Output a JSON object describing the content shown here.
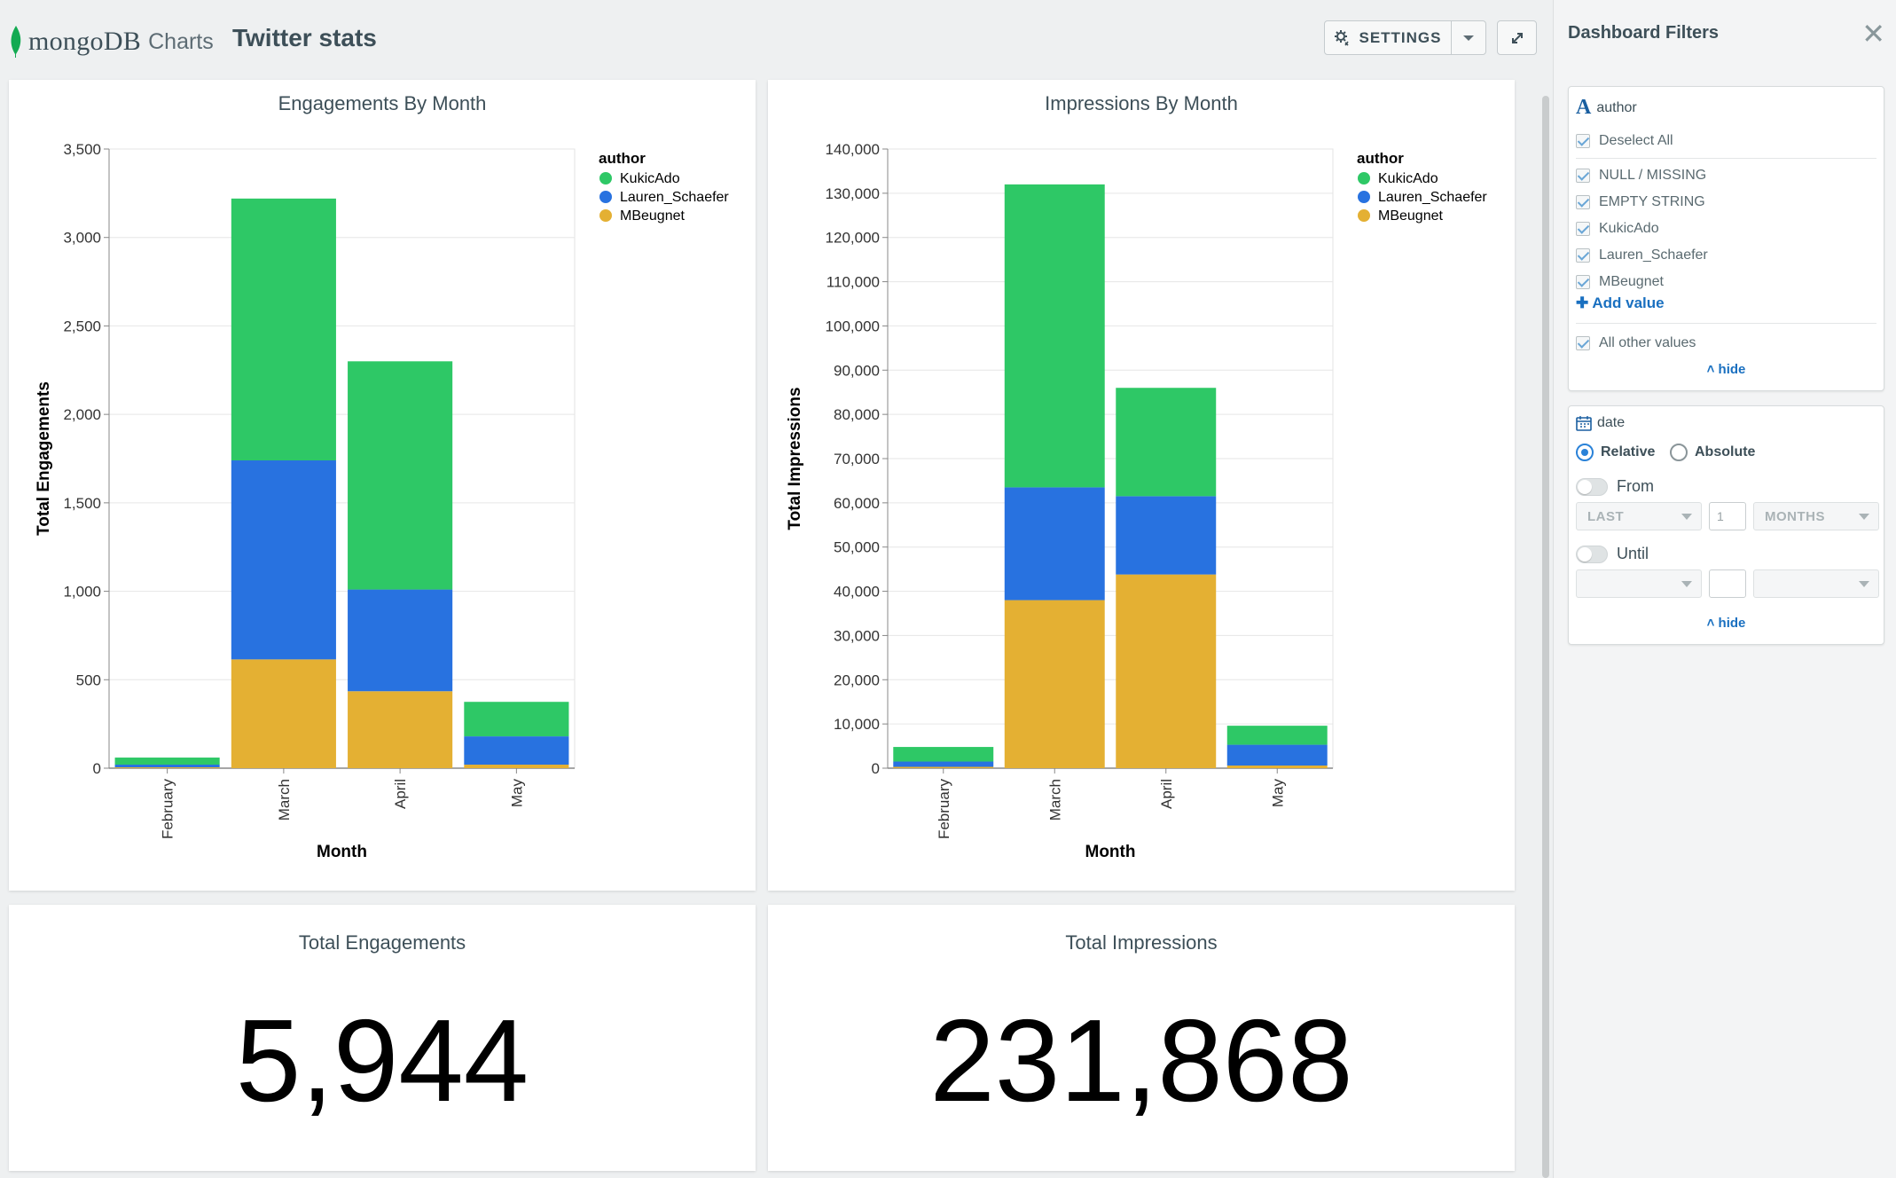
{
  "header": {
    "brand": "mongoDB",
    "product": "Charts",
    "dashboard_title": "Twitter stats",
    "settings_label": "SETTINGS"
  },
  "colors": {
    "KukicAdo": "#2ec866",
    "Lauren_Schaefer": "#2872e0",
    "MBeugnet": "#e4b033",
    "accent": "#1a70c0"
  },
  "icons": [
    "mongodb-leaf-icon",
    "settings-gear-icon",
    "chevron-down-icon",
    "expand-icon",
    "close-icon",
    "text-field-icon",
    "calendar-icon",
    "plus-icon",
    "chevron-up-icon"
  ],
  "charts": {
    "engagements_title": "Engagements By Month",
    "impressions_title": "Impressions By Month",
    "total_engagements_title": "Total Engagements",
    "total_engagements_value": "5,944",
    "total_impressions_title": "Total Impressions",
    "total_impressions_value": "231,868"
  },
  "chart_data": [
    {
      "type": "bar",
      "stacked": true,
      "title": "Engagements By Month",
      "xlabel": "Month",
      "ylabel": "Total Engagements",
      "legend_title": "author",
      "legend_position": "top-right",
      "categories": [
        "February",
        "March",
        "April",
        "May"
      ],
      "ylim": [
        0,
        3500
      ],
      "yticks": [
        0,
        500,
        1000,
        1500,
        2000,
        2500,
        3000,
        3500
      ],
      "ytick_labels": [
        "0",
        "500",
        "1,000",
        "1,500",
        "2,000",
        "2,500",
        "3,000",
        "3,500"
      ],
      "grid": true,
      "series": [
        {
          "name": "MBeugnet",
          "values": [
            5,
            615,
            435,
            20
          ]
        },
        {
          "name": "Lauren_Schaefer",
          "values": [
            15,
            1125,
            575,
            160
          ]
        },
        {
          "name": "KukicAdo",
          "values": [
            40,
            1480,
            1290,
            195
          ]
        }
      ]
    },
    {
      "type": "bar",
      "stacked": true,
      "title": "Impressions By Month",
      "xlabel": "Month",
      "ylabel": "Total Impressions",
      "legend_title": "author",
      "legend_position": "top-right",
      "categories": [
        "February",
        "March",
        "April",
        "May"
      ],
      "ylim": [
        0,
        140000
      ],
      "yticks": [
        0,
        10000,
        20000,
        30000,
        40000,
        50000,
        60000,
        70000,
        80000,
        90000,
        100000,
        110000,
        120000,
        130000,
        140000
      ],
      "ytick_labels": [
        "0",
        "10,000",
        "20,000",
        "30,000",
        "40,000",
        "50,000",
        "60,000",
        "70,000",
        "80,000",
        "90,000",
        "100,000",
        "110,000",
        "120,000",
        "130,000",
        "140,000"
      ],
      "grid": true,
      "series": [
        {
          "name": "MBeugnet",
          "values": [
            300,
            38000,
            43800,
            600
          ]
        },
        {
          "name": "Lauren_Schaefer",
          "values": [
            1200,
            25500,
            17700,
            4700
          ]
        },
        {
          "name": "KukicAdo",
          "values": [
            3300,
            68500,
            24500,
            4300
          ]
        }
      ]
    }
  ],
  "filters": {
    "title": "Dashboard Filters",
    "author": {
      "field": "author",
      "deselect_all": "Deselect All",
      "values": [
        "NULL / MISSING",
        "EMPTY STRING",
        "KukicAdo",
        "Lauren_Schaefer",
        "MBeugnet"
      ],
      "add_value": "Add value",
      "all_other": "All other values",
      "hide": "hide"
    },
    "date": {
      "field": "date",
      "relative": "Relative",
      "absolute": "Absolute",
      "from": "From",
      "from_mode": "LAST",
      "from_count": "1",
      "from_unit": "MONTHS",
      "until": "Until",
      "hide": "hide"
    }
  }
}
